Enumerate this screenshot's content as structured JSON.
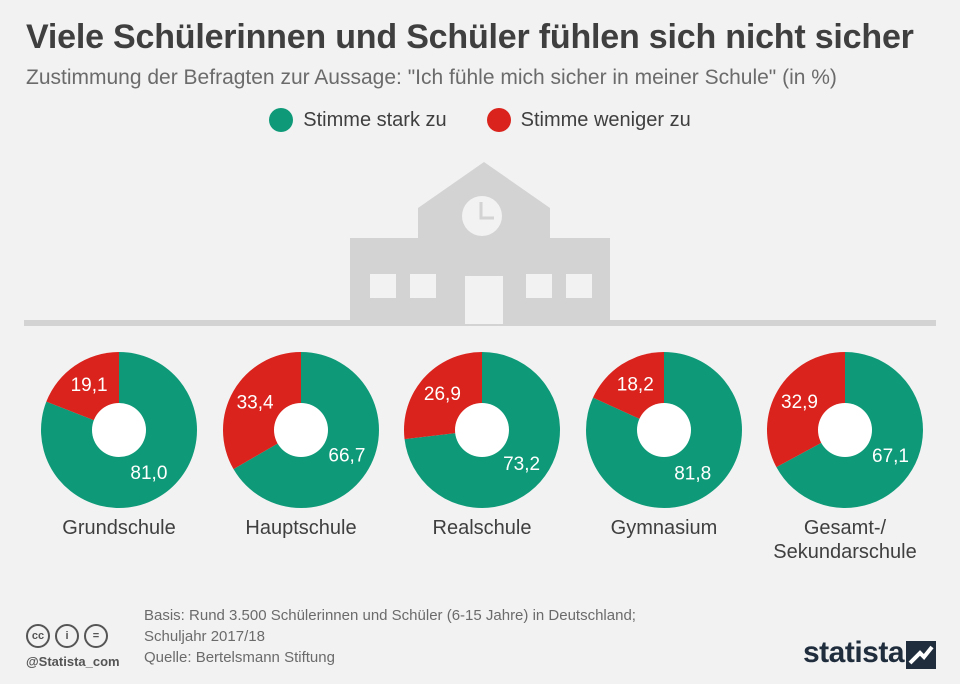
{
  "title": "Viele Schülerinnen und Schüler fühlen sich nicht sicher",
  "subtitle": "Zustimmung der Befragten zur Aussage: \"Ich fühle mich sicher in meiner Schule\" (in %)",
  "legend": {
    "strong": "Stimme stark zu",
    "less": "Stimme weniger zu"
  },
  "colors": {
    "green": "#0e9a78",
    "red": "#d9231c",
    "building": "#d3d3d3"
  },
  "chart_data": {
    "type": "pie",
    "title": "Viele Schülerinnen und Schüler fühlen sich nicht sicher",
    "subtitle": "Zustimmung der Befragten zur Aussage: \"Ich fühle mich sicher in meiner Schule\" (in %)",
    "categories": [
      "Grundschule",
      "Hauptschule",
      "Realschule",
      "Gymnasium",
      "Gesamt-/ Sekundarschule"
    ],
    "series": [
      {
        "name": "Stimme stark zu",
        "values": [
          81.0,
          66.7,
          73.2,
          81.8,
          67.1
        ],
        "labels": [
          "81,0",
          "66,7",
          "73,2",
          "81,8",
          "67,1"
        ]
      },
      {
        "name": "Stimme weniger zu",
        "values": [
          19.1,
          33.4,
          26.9,
          18.2,
          32.9
        ],
        "labels": [
          "19,1",
          "33,4",
          "26,9",
          "18,2",
          "32,9"
        ]
      }
    ]
  },
  "category_labels": {
    "c0": "Grundschule",
    "c1": "Hauptschule",
    "c2": "Realschule",
    "c3": "Gymnasium",
    "c4a": "Gesamt-/",
    "c4b": "Sekundarschule"
  },
  "footer": {
    "basis_line1": "Basis: Rund 3.500 Schülerinnen und Schüler (6-15 Jahre) in Deutschland;",
    "basis_line2": "Schuljahr 2017/18",
    "source": "Quelle: Bertelsmann Stiftung",
    "handle": "@Statista_com",
    "brand": "statista",
    "cc": "cc",
    "by": "i",
    "nd": "="
  }
}
